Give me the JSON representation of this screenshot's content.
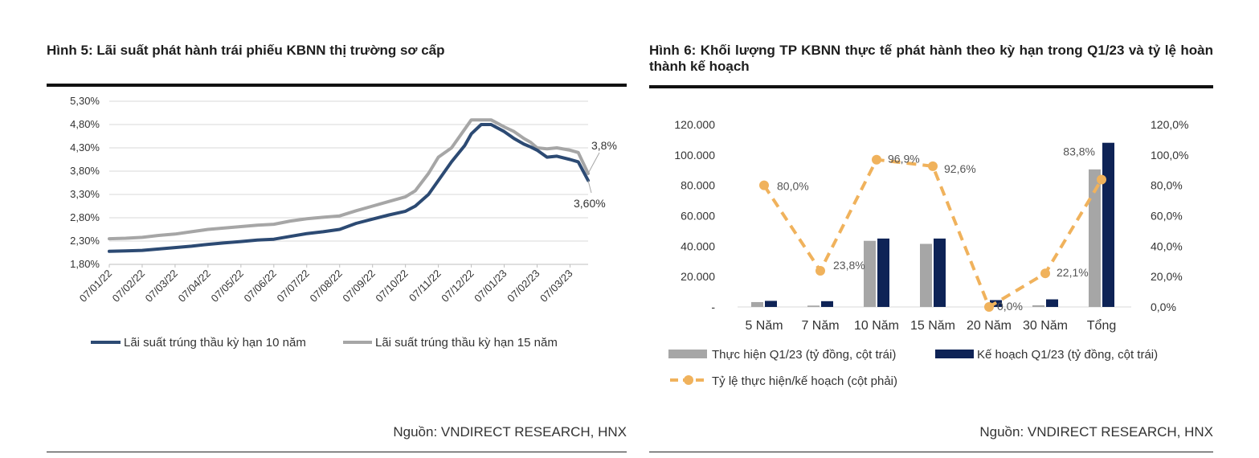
{
  "figure5": {
    "title": "Hình 5: Lãi suất phát hành trái phiếu KBNN thị trường sơ cấp",
    "source": "Nguồn: VNDIRECT RESEARCH, HNX",
    "chart_data": {
      "type": "line",
      "title": "",
      "xlabel": "",
      "ylabel": "",
      "y_ticks": [
        "1,80%",
        "2,30%",
        "2,80%",
        "3,30%",
        "3,80%",
        "4,30%",
        "4,80%",
        "5,30%"
      ],
      "ylim": [
        1.8,
        5.3
      ],
      "x_ticks": [
        "07/01/22",
        "07/02/22",
        "07/03/22",
        "07/04/22",
        "07/05/22",
        "07/06/22",
        "07/07/22",
        "07/08/22",
        "07/09/22",
        "07/10/22",
        "07/11/22",
        "07/12/22",
        "07/01/23",
        "07/02/23",
        "07/03/23"
      ],
      "grid": true,
      "legend": "bottom",
      "series": [
        {
          "name": "Lãi suất trúng thầu kỳ hạn 10 năm",
          "color": "#2c4a73",
          "x": [
            0,
            0.5,
            1,
            1.5,
            2,
            2.5,
            3,
            3.5,
            4,
            4.5,
            5,
            5.5,
            6,
            6.5,
            7,
            7.5,
            8,
            8.5,
            9,
            9.3,
            9.7,
            10.0,
            10.4,
            10.8,
            11.0,
            11.3,
            11.6,
            12.0,
            12.3,
            12.6,
            12.8,
            13.0,
            13.3,
            13.6,
            14.0,
            14.25,
            14.55
          ],
          "values": [
            2.08,
            2.09,
            2.1,
            2.13,
            2.16,
            2.19,
            2.23,
            2.26,
            2.29,
            2.32,
            2.34,
            2.4,
            2.46,
            2.5,
            2.55,
            2.68,
            2.77,
            2.86,
            2.94,
            3.05,
            3.3,
            3.6,
            4.0,
            4.35,
            4.6,
            4.8,
            4.8,
            4.65,
            4.5,
            4.38,
            4.32,
            4.25,
            4.1,
            4.12,
            4.05,
            4.0,
            3.6
          ]
        },
        {
          "name": "Lãi suất trúng thầu kỳ hạn 15 năm",
          "color": "#a6a6a6",
          "x": [
            0,
            0.5,
            1,
            1.5,
            2,
            2.5,
            3,
            3.5,
            4,
            4.5,
            5,
            5.5,
            6,
            6.5,
            7,
            7.5,
            8,
            8.5,
            9,
            9.3,
            9.7,
            10.0,
            10.4,
            10.8,
            11.0,
            11.3,
            11.6,
            12.0,
            12.3,
            12.6,
            12.8,
            13.0,
            13.3,
            13.6,
            14.0,
            14.25,
            14.55
          ],
          "values": [
            2.35,
            2.36,
            2.38,
            2.42,
            2.45,
            2.5,
            2.55,
            2.58,
            2.61,
            2.64,
            2.66,
            2.73,
            2.78,
            2.81,
            2.84,
            2.95,
            3.05,
            3.15,
            3.25,
            3.38,
            3.75,
            4.1,
            4.3,
            4.7,
            4.9,
            4.9,
            4.9,
            4.75,
            4.65,
            4.5,
            4.42,
            4.3,
            4.28,
            4.3,
            4.25,
            4.2,
            3.75
          ]
        }
      ],
      "annotations": [
        {
          "text": "3,8%",
          "series": 1
        },
        {
          "text": "3,60%",
          "series": 0
        }
      ]
    }
  },
  "figure6": {
    "title": "Hình 6: Khối lượng TP KBNN thực tế phát hành theo kỳ hạn trong Q1/23 và tỷ lệ hoàn thành kế hoạch",
    "source": "Nguồn: VNDIRECT RESEARCH, HNX",
    "chart_data": {
      "type": "bar",
      "title": "",
      "categories": [
        "5 Năm",
        "7 Năm",
        "10 Năm",
        "15 Năm",
        "20 Năm",
        "30 Năm",
        "Tổng"
      ],
      "y_left_ticks": [
        "-",
        "20.000",
        "40.000",
        "60.000",
        "80.000",
        "100.000",
        "120.000"
      ],
      "ylim_left": [
        0,
        120000
      ],
      "y_right_ticks": [
        "0,0%",
        "20,0%",
        "40,0%",
        "60,0%",
        "80,0%",
        "100,0%",
        "120,0%"
      ],
      "ylim_right": [
        0,
        120
      ],
      "legend": "bottom",
      "series": [
        {
          "name": "Thực hiện Q1/23 (tỷ đồng, cột trái)",
          "color": "#a6a6a6",
          "axis": "left",
          "values": [
            3200,
            900,
            43500,
            41500,
            0,
            1100,
            90500
          ]
        },
        {
          "name": "Kế hoạch Q1/23 (tỷ đồng, cột trái)",
          "color": "#0e2356",
          "axis": "left",
          "values": [
            4000,
            3800,
            45000,
            45000,
            4500,
            5000,
            108000
          ]
        },
        {
          "name": "Tỷ lệ thực hiện/kế hoạch (cột phải)",
          "color": "#f0b25c",
          "axis": "right",
          "type": "line",
          "values": [
            80.0,
            23.8,
            96.9,
            92.6,
            0.0,
            22.1,
            83.8
          ]
        }
      ],
      "data_labels": [
        "80,0%",
        "23,8%",
        "96,9%",
        "92,6%",
        "0,0%",
        "22,1%",
        "83,8%"
      ]
    }
  }
}
